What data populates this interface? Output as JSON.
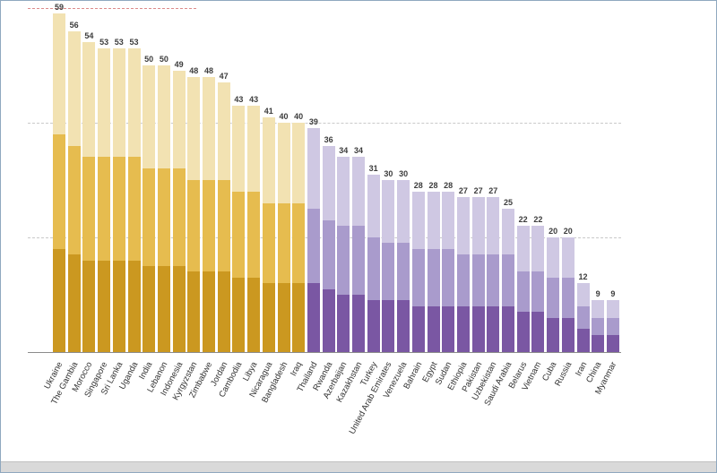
{
  "frame": {
    "background": "#ffffff",
    "border_color": "#8fa8bf",
    "bottom_bar_color": "#d9d9d9"
  },
  "chart_data": {
    "type": "bar",
    "stacked": true,
    "title": "",
    "xlabel": "",
    "ylabel": "",
    "ylim": [
      0,
      60
    ],
    "grid": "dashed-horizontal",
    "legend": "none",
    "categories": [
      "Ukraine",
      "The Gambia",
      "Morocco",
      "Singapore",
      "Sri Lanka",
      "Uganda",
      "India",
      "Lebanon",
      "Indonesia",
      "Kyrgyzstan",
      "Zimbabwe",
      "Jordan",
      "Cambodia",
      "Libya",
      "Nicaragua",
      "Bangladesh",
      "Iraq",
      "Thailand",
      "Rwanda",
      "Azerbaijan",
      "Kazakhstan",
      "Turkey",
      "United Arab Emirates",
      "Venezuela",
      "Bahrain",
      "Egypt",
      "Sudan",
      "Ethiopia",
      "Pakistan",
      "Uzbekistan",
      "Saudi Arabia",
      "Belarus",
      "Vietnam",
      "Cuba",
      "Russia",
      "Iran",
      "China",
      "Myanmar"
    ],
    "totals": [
      59,
      56,
      54,
      53,
      53,
      53,
      50,
      50,
      49,
      48,
      48,
      47,
      43,
      43,
      41,
      40,
      40,
      39,
      36,
      34,
      34,
      31,
      30,
      30,
      28,
      28,
      28,
      27,
      27,
      27,
      25,
      22,
      22,
      20,
      20,
      12,
      9,
      9
    ],
    "series": [
      {
        "name": "bottom-segment",
        "values": [
          18,
          17,
          16,
          16,
          16,
          16,
          15,
          15,
          15,
          14,
          14,
          14,
          13,
          13,
          12,
          12,
          12,
          12,
          11,
          10,
          10,
          9,
          9,
          9,
          8,
          8,
          8,
          8,
          8,
          8,
          8,
          7,
          7,
          6,
          6,
          4,
          3,
          3
        ]
      },
      {
        "name": "middle-segment",
        "values": [
          20,
          19,
          18,
          18,
          18,
          18,
          17,
          17,
          17,
          16,
          16,
          16,
          15,
          15,
          14,
          14,
          14,
          13,
          12,
          12,
          12,
          11,
          10,
          10,
          10,
          10,
          10,
          9,
          9,
          9,
          9,
          7,
          7,
          7,
          7,
          4,
          3,
          3
        ]
      },
      {
        "name": "top-segment",
        "values": [
          21,
          20,
          20,
          19,
          19,
          19,
          18,
          18,
          17,
          18,
          18,
          17,
          15,
          15,
          15,
          14,
          14,
          14,
          13,
          12,
          12,
          11,
          11,
          11,
          10,
          10,
          10,
          10,
          10,
          10,
          8,
          8,
          8,
          7,
          7,
          4,
          3,
          3
        ]
      }
    ],
    "groups": [
      {
        "name": "gold-group",
        "start": 0,
        "end": 16,
        "colors": {
          "bottom": "#cb9820",
          "middle": "#e6bc4f",
          "top": "#f2e2b2"
        }
      },
      {
        "name": "purple-group",
        "start": 17,
        "end": 37,
        "colors": {
          "bottom": "#7a57a3",
          "middle": "#a99bcc",
          "top": "#cfc8e3"
        }
      }
    ],
    "gridlines": [
      {
        "value": 60,
        "color": "#dd8a8a",
        "style": "dashed",
        "partial": true
      },
      {
        "value": 40,
        "color": "#c9c9c9",
        "style": "dashed",
        "partial": false
      },
      {
        "value": 20,
        "color": "#c9c9c9",
        "style": "dashed",
        "partial": false
      }
    ],
    "value_label_color": "#3c3c3c",
    "axis_label_color": "#333333",
    "baseline_color": "#8c8c8c"
  }
}
